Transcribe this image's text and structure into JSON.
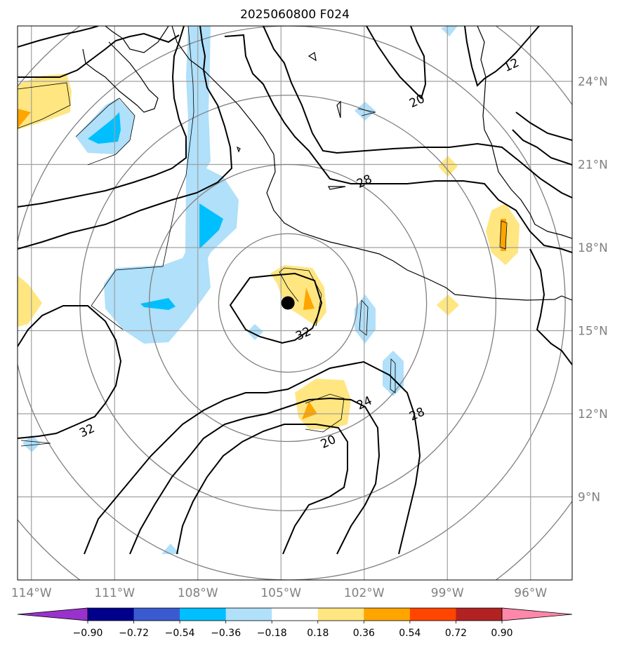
{
  "chart_data": {
    "type": "map-contour",
    "title": "2025060800 F024",
    "lon_ticks": [
      {
        "value": -114,
        "label": "114°W"
      },
      {
        "value": -111,
        "label": "111°W"
      },
      {
        "value": -108,
        "label": "108°W"
      },
      {
        "value": -105,
        "label": "105°W"
      },
      {
        "value": -102,
        "label": "102°W"
      },
      {
        "value": -99,
        "label": "99°W"
      },
      {
        "value": -96,
        "label": "96°W"
      }
    ],
    "lat_ticks": [
      {
        "value": 24,
        "label": "24°N"
      },
      {
        "value": 21,
        "label": "21°N"
      },
      {
        "value": 18,
        "label": "18°N"
      },
      {
        "value": 15,
        "label": "15°N"
      },
      {
        "value": 12,
        "label": "12°N"
      },
      {
        "value": 9,
        "label": "9°N"
      }
    ],
    "lon_range": [
      -114.5,
      -94.5
    ],
    "lat_range": [
      6.0,
      26.0
    ],
    "grid": true,
    "center": {
      "lon": -104.75,
      "lat": 16.0
    },
    "range_rings_deg": [
      2.5,
      5,
      7.5,
      10,
      12.5
    ],
    "contour_labels": [
      {
        "text": "32",
        "lon": -104.2,
        "lat": 14.9
      },
      {
        "text": "20",
        "lon": -100.1,
        "lat": 23.3
      },
      {
        "text": "28",
        "lon": -102.0,
        "lat": 20.4
      },
      {
        "text": "12",
        "lon": -96.7,
        "lat": 24.6
      },
      {
        "text": "24",
        "lon": -102.0,
        "lat": 12.4
      },
      {
        "text": "28",
        "lon": -100.1,
        "lat": 12.0
      },
      {
        "text": "20",
        "lon": -103.3,
        "lat": 11.0
      },
      {
        "text": "32",
        "lon": -112.0,
        "lat": 11.4
      }
    ],
    "colorbar": {
      "levels": [
        "−0.90",
        "−0.72",
        "−0.54",
        "−0.36",
        "−0.18",
        "0.18",
        "0.36",
        "0.54",
        "0.72",
        "0.90"
      ],
      "colors": [
        "#9932cc",
        "#00008b",
        "#3a5bd0",
        "#00bfff",
        "#b0e0fa",
        "#ffffff",
        "#ffe680",
        "#ffa500",
        "#ff4500",
        "#b22222",
        "#ff88aa"
      ],
      "extend": "both"
    }
  }
}
